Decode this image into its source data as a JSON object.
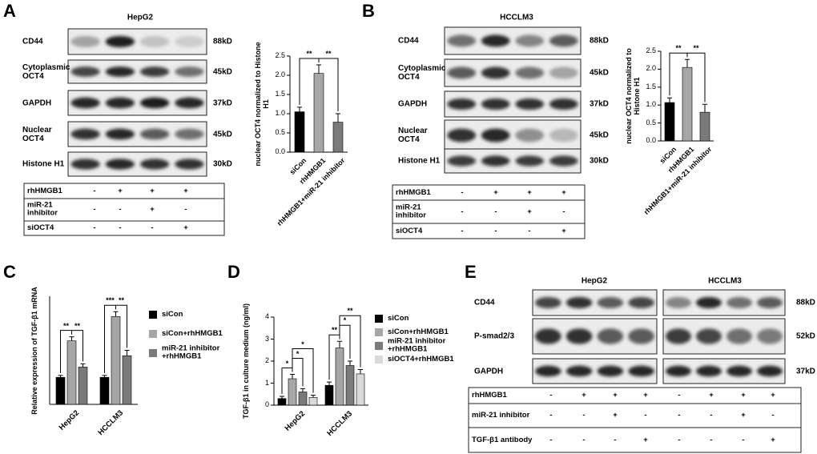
{
  "panels": [
    "A",
    "B",
    "C",
    "D",
    "E"
  ],
  "blot_a": {
    "title": "HepG2",
    "rows": [
      {
        "label": "CD44",
        "size": "88kD"
      },
      {
        "label": "Cytoplasmic OCT4",
        "size": "45kD"
      },
      {
        "label": "GAPDH",
        "size": "37kD"
      },
      {
        "label": "Nuclear OCT4",
        "size": "45kD"
      },
      {
        "label": "Histone H1",
        "size": "30kD"
      }
    ],
    "table": [
      {
        "label": "rhHMGB1",
        "cells": [
          "-",
          "+",
          "+",
          "+"
        ]
      },
      {
        "label": "miR-21 inhibitor",
        "cells": [
          "-",
          "-",
          "+",
          "-"
        ]
      },
      {
        "label": "siOCT4",
        "cells": [
          "-",
          "-",
          "-",
          "+"
        ]
      }
    ]
  },
  "blot_b": {
    "title": "HCCLM3",
    "rows": [
      {
        "label": "CD44",
        "size": "88kD"
      },
      {
        "label": "Cytoplasmic OCT4",
        "size": "45kD"
      },
      {
        "label": "GAPDH",
        "size": "37kD"
      },
      {
        "label": "Nuclear OCT4",
        "size": "45kD"
      },
      {
        "label": "Histone H1",
        "size": "30kD"
      }
    ],
    "table": [
      {
        "label": "rhHMGB1",
        "cells": [
          "-",
          "+",
          "+",
          "+"
        ]
      },
      {
        "label": "miR-21 inhibitor",
        "cells": [
          "-",
          "-",
          "+",
          "-"
        ]
      },
      {
        "label": "siOCT4",
        "cells": [
          "-",
          "-",
          "-",
          "+"
        ]
      }
    ]
  },
  "blot_e": {
    "titles": [
      "HepG2",
      "HCCLM3"
    ],
    "rows": [
      {
        "label": "CD44",
        "size": "88kD"
      },
      {
        "label": "P-smad2/3",
        "size": "52kD"
      },
      {
        "label": "GAPDH",
        "size": "37kD"
      }
    ],
    "table": [
      {
        "label": "rhHMGB1",
        "cells": [
          "-",
          "+",
          "+",
          "+",
          "-",
          "+",
          "+",
          "+"
        ]
      },
      {
        "label": "miR-21 inhibitor",
        "cells": [
          "-",
          "-",
          "+",
          "-",
          "-",
          "-",
          "+",
          "-"
        ]
      },
      {
        "label": "TGF-β1 antibody",
        "cells": [
          "-",
          "-",
          "-",
          "+",
          "-",
          "-",
          "-",
          "+"
        ]
      }
    ]
  },
  "chart_data": [
    {
      "type": "bar",
      "ylabel": "nuclear OCT4 normalized to Histone H1",
      "categories": [
        "siCon",
        "rhHMGB1",
        "rhHMGB1+miR-21 inhibitor"
      ],
      "values": [
        1.05,
        2.05,
        0.78
      ],
      "errors": [
        0.12,
        0.22,
        0.22
      ],
      "colors": [
        "#000000",
        "#a6a6a6",
        "#7a7a7a"
      ],
      "ylim": [
        0,
        2.5
      ],
      "yticks": [
        {
          "value": 0,
          "label": "0.0"
        },
        0.5,
        {
          "value": 1,
          "label": "1.0"
        },
        1.5,
        {
          "value": 2,
          "label": "2.0"
        },
        2.5
      ],
      "annotations": [
        "**",
        "**"
      ]
    },
    {
      "type": "bar",
      "ylabel": "nuclear OCT4 normalized to Histone H1",
      "categories": [
        "siCon",
        "rhHMGB1",
        "rhHMGB1+miR-21 inhibitor"
      ],
      "values": [
        1.07,
        2.05,
        0.8
      ],
      "errors": [
        0.13,
        0.22,
        0.22
      ],
      "colors": [
        "#000000",
        "#a6a6a6",
        "#7a7a7a"
      ],
      "ylim": [
        0,
        2.5
      ],
      "yticks": [
        {
          "value": 0,
          "label": "0.0"
        },
        0.5,
        {
          "value": 1,
          "label": "1.0"
        },
        1.5,
        {
          "value": 2,
          "label": "2.0"
        },
        2.5
      ],
      "annotations": [
        "**",
        "**"
      ]
    },
    {
      "type": "bar",
      "ylabel": "Relative expression of TGF-β1 mRNA",
      "categories": [
        "HepG2",
        "HCCLM3"
      ],
      "series": [
        {
          "name": "siCon",
          "color": "#000000",
          "values": [
            1.0,
            1.0
          ],
          "errors": [
            0.07,
            0.07
          ]
        },
        {
          "name": "siCon+rhHMGB1",
          "color": "#a6a6a6",
          "values": [
            2.35,
            3.25
          ],
          "errors": [
            0.15,
            0.18
          ]
        },
        {
          "name": "miR-21 inhibitor +rhHMGB1",
          "color": "#7a7a7a",
          "values": [
            1.38,
            1.8
          ],
          "errors": [
            0.12,
            0.2
          ]
        }
      ],
      "ylim": [
        0,
        4
      ],
      "annotations": [
        "**",
        "**",
        "***",
        "**"
      ]
    },
    {
      "type": "bar",
      "ylabel": "TGF-β1 in culture medium (ng/ml)",
      "categories": [
        "HepG2",
        "HCCLM3"
      ],
      "series": [
        {
          "name": "siCon",
          "color": "#000000",
          "values": [
            0.3,
            0.9
          ],
          "errors": [
            0.1,
            0.15
          ]
        },
        {
          "name": "siCon+rhHMGB1",
          "color": "#a6a6a6",
          "values": [
            1.2,
            2.6
          ],
          "errors": [
            0.2,
            0.3
          ]
        },
        {
          "name": "miR-21 inhibitor +rhHMGB1",
          "color": "#7a7a7a",
          "values": [
            0.6,
            1.8
          ],
          "errors": [
            0.15,
            0.2
          ]
        },
        {
          "name": "siOCT4+rhHMGB1",
          "color": "#d9d9d9",
          "values": [
            0.35,
            1.42
          ],
          "errors": [
            0.1,
            0.2
          ]
        }
      ],
      "ylim": [
        0,
        4
      ],
      "yticks": [
        0,
        1,
        2,
        3,
        4
      ],
      "annotations": [
        "*",
        "*",
        "*",
        "**",
        "*",
        "**"
      ]
    }
  ]
}
